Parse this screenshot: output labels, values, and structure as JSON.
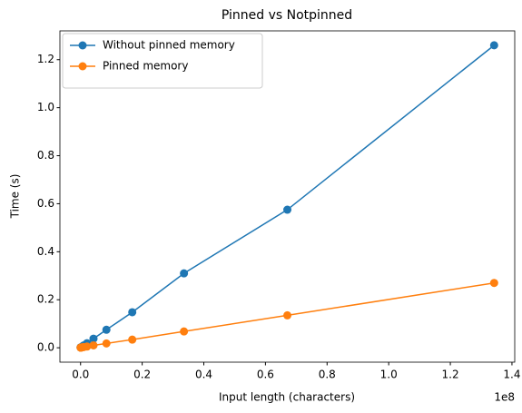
{
  "chart_data": {
    "type": "line",
    "title": "Pinned vs Notpinned",
    "x_label": "Input length (characters)",
    "y_label": "Time (s)",
    "x_offset_label": "1e8",
    "x": [
      16384,
      32768,
      65536,
      131072,
      262144,
      524288,
      1048576,
      2097152,
      4194304,
      8388608,
      16777216,
      33554432,
      67108864,
      134217728
    ],
    "series": [
      {
        "name": "Without pinned memory",
        "color": "#1f77b4",
        "values": [
          0.001,
          0.001,
          0.001,
          0.002,
          0.003,
          0.005,
          0.01,
          0.019,
          0.038,
          0.075,
          0.148,
          0.31,
          0.575,
          1.26
        ]
      },
      {
        "name": "Pinned memory",
        "color": "#ff7f0e",
        "values": [
          0.0005,
          0.0005,
          0.0005,
          0.001,
          0.001,
          0.002,
          0.003,
          0.005,
          0.01,
          0.018,
          0.034,
          0.068,
          0.135,
          0.27
        ]
      }
    ],
    "xlim": [
      -6700000,
      140900000
    ],
    "xticks": [
      {
        "value": 0,
        "label": "0.0"
      },
      {
        "value": 20000000,
        "label": "0.2"
      },
      {
        "value": 40000000,
        "label": "0.4"
      },
      {
        "value": 60000000,
        "label": "0.6"
      },
      {
        "value": 80000000,
        "label": "0.8"
      },
      {
        "value": 100000000,
        "label": "1.0"
      },
      {
        "value": 120000000,
        "label": "1.2"
      },
      {
        "value": 140000000,
        "label": "1.4"
      }
    ],
    "ylim": [
      -0.06,
      1.32
    ],
    "yticks": [
      {
        "value": 0,
        "label": "0.0"
      },
      0.2,
      0.4,
      0.6,
      0.8,
      {
        "value": 1,
        "label": "1.0"
      },
      1.2
    ],
    "grid": false,
    "legend": "upper left"
  }
}
